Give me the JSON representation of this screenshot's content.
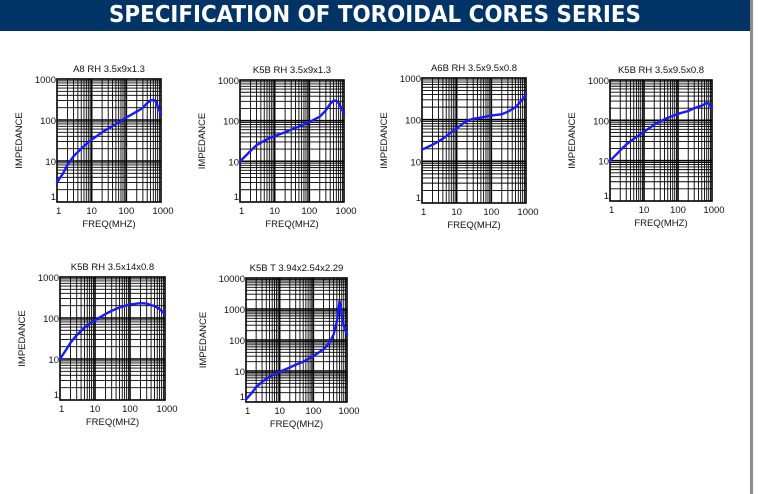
{
  "header": {
    "title": "SPECIFICATION OF TOROIDAL CORES SERIES"
  },
  "colors": {
    "header_bg": "#003366",
    "header_text": "#ffffff",
    "curve": "#1a1aff",
    "grid": "#000000"
  },
  "chart_data": [
    {
      "type": "line",
      "title": "A8 RH 3.5x9x1.3",
      "xlabel": "FREQ(MHZ)",
      "ylabel": "IMPEDANCE",
      "xscale": "log",
      "yscale": "log",
      "xlim": [
        1,
        1000
      ],
      "ylim": [
        1,
        1000
      ],
      "xticks": [
        "1",
        "10",
        "100",
        "1000"
      ],
      "yticks": [
        "1",
        "10",
        "100",
        "1000"
      ],
      "grid": true,
      "series": [
        {
          "name": "impedance",
          "x": [
            1,
            1.5,
            2,
            3,
            5,
            7,
            10,
            20,
            30,
            50,
            100,
            200,
            300,
            400,
            500,
            600,
            700,
            800,
            1000
          ],
          "y": [
            3,
            5,
            8,
            13,
            20,
            26,
            33,
            50,
            62,
            80,
            115,
            160,
            200,
            260,
            300,
            310,
            290,
            220,
            140
          ]
        }
      ]
    },
    {
      "type": "line",
      "title": "K5B RH 3.5x9x1.3",
      "xlabel": "FREQ(MHZ)",
      "ylabel": "IMPEDANCE",
      "xscale": "log",
      "yscale": "log",
      "xlim": [
        1,
        1000
      ],
      "ylim": [
        1,
        1000
      ],
      "xticks": [
        "1",
        "10",
        "100",
        "1000"
      ],
      "yticks": [
        "1",
        "10",
        "100",
        "1000"
      ],
      "grid": true,
      "series": [
        {
          "name": "impedance",
          "x": [
            1,
            1.5,
            2,
            3,
            5,
            7,
            10,
            20,
            30,
            50,
            100,
            200,
            300,
            400,
            500,
            600,
            700,
            800,
            1000
          ],
          "y": [
            10,
            14,
            18,
            25,
            32,
            37,
            42,
            52,
            60,
            72,
            92,
            125,
            180,
            260,
            310,
            310,
            270,
            220,
            150
          ]
        }
      ]
    },
    {
      "type": "line",
      "title": "A6B RH 3.5x9.5x0.8",
      "xlabel": "FREQ(MHZ)",
      "ylabel": "IMPEDANCE",
      "xscale": "log",
      "yscale": "log",
      "xlim": [
        1,
        1000
      ],
      "ylim": [
        1,
        1000
      ],
      "xticks": [
        "1",
        "10",
        "100",
        "1000"
      ],
      "yticks": [
        "1",
        "10",
        "100",
        "1000"
      ],
      "grid": true,
      "series": [
        {
          "name": "impedance",
          "x": [
            1,
            2,
            3,
            5,
            7,
            10,
            15,
            20,
            30,
            50,
            100,
            200,
            300,
            500,
            700,
            1000
          ],
          "y": [
            19,
            25,
            30,
            40,
            50,
            62,
            80,
            95,
            105,
            112,
            125,
            135,
            155,
            200,
            270,
            400
          ]
        }
      ]
    },
    {
      "type": "line",
      "title": "K5B RH 3.5x9.5x0.8",
      "xlabel": "FREQ(MHZ)",
      "ylabel": "IMPEDANCE",
      "xscale": "log",
      "yscale": "log",
      "xlim": [
        1,
        1000
      ],
      "ylim": [
        1,
        1000
      ],
      "xticks": [
        "1",
        "10",
        "100",
        "1000"
      ],
      "yticks": [
        "1",
        "10",
        "100",
        "1000"
      ],
      "grid": true,
      "series": [
        {
          "name": "impedance",
          "x": [
            1,
            1.5,
            2,
            3,
            5,
            7,
            10,
            20,
            30,
            50,
            100,
            200,
            300,
            500,
            700,
            800,
            1000
          ],
          "y": [
            10,
            14,
            18,
            25,
            35,
            42,
            52,
            78,
            95,
            115,
            145,
            170,
            200,
            230,
            270,
            260,
            200
          ]
        }
      ]
    },
    {
      "type": "line",
      "title": "K5B RH 3.5x14x0.8",
      "xlabel": "FREQ(MHZ)",
      "ylabel": "IMPEDANCE",
      "xscale": "log",
      "yscale": "log",
      "xlim": [
        1,
        1000
      ],
      "ylim": [
        1,
        1000
      ],
      "xticks": [
        "1",
        "10",
        "100",
        "1000"
      ],
      "yticks": [
        "1",
        "10",
        "100",
        "1000"
      ],
      "grid": true,
      "series": [
        {
          "name": "impedance",
          "x": [
            1,
            1.5,
            2,
            3,
            5,
            7,
            10,
            20,
            30,
            50,
            100,
            200,
            300,
            500,
            700,
            1000
          ],
          "y": [
            10,
            17,
            25,
            38,
            58,
            72,
            88,
            125,
            150,
            180,
            215,
            230,
            225,
            195,
            165,
            125
          ]
        }
      ]
    },
    {
      "type": "line",
      "title": "K5B T 3.94x2.54x2.29",
      "xlabel": "FREQ(MHZ)",
      "ylabel": "IMPEDANCE",
      "xscale": "log",
      "yscale": "log",
      "xlim": [
        1,
        1000
      ],
      "ylim": [
        1,
        10000
      ],
      "xticks": [
        "1",
        "10",
        "100",
        "1000"
      ],
      "yticks": [
        "1",
        "10",
        "100",
        "1000",
        "10000"
      ],
      "grid": true,
      "series": [
        {
          "name": "impedance",
          "x": [
            1,
            1.5,
            2,
            3,
            5,
            7,
            10,
            20,
            30,
            50,
            100,
            200,
            300,
            400,
            500,
            550,
            600,
            650,
            700,
            800,
            1000
          ],
          "y": [
            1.2,
            2.0,
            3.0,
            4.5,
            6.5,
            8,
            9.5,
            13,
            16,
            20,
            30,
            50,
            80,
            150,
            400,
            900,
            1800,
            1200,
            600,
            300,
            150
          ]
        }
      ]
    }
  ]
}
